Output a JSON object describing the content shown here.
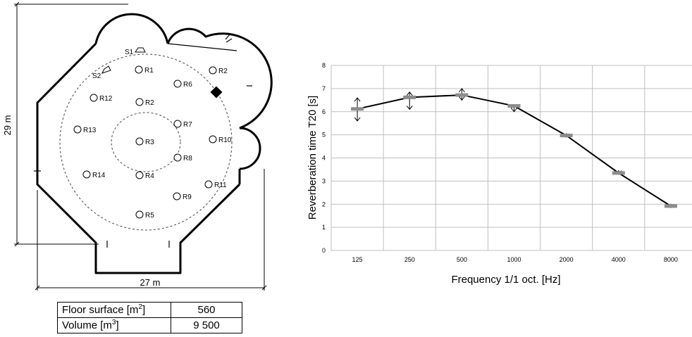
{
  "plan": {
    "dimensions": {
      "height_label": "29 m",
      "width_label": "27 m"
    },
    "sources": [
      {
        "id": "S1",
        "label": "S1"
      },
      {
        "id": "S2",
        "label": "S2"
      }
    ],
    "receivers": [
      {
        "id": "R1",
        "label": "R1"
      },
      {
        "id": "R2",
        "label": "R2"
      },
      {
        "id": "R2b",
        "label": "R2"
      },
      {
        "id": "R3",
        "label": "R3"
      },
      {
        "id": "R4",
        "label": "R4"
      },
      {
        "id": "R5",
        "label": "R5"
      },
      {
        "id": "R6",
        "label": "R6"
      },
      {
        "id": "R7",
        "label": "R7"
      },
      {
        "id": "R8",
        "label": "R8"
      },
      {
        "id": "R9",
        "label": "R9"
      },
      {
        "id": "R10",
        "label": "R10"
      },
      {
        "id": "R11",
        "label": "R11"
      },
      {
        "id": "R12",
        "label": "R12"
      },
      {
        "id": "R13",
        "label": "R13"
      },
      {
        "id": "R14",
        "label": "R14"
      }
    ]
  },
  "table": {
    "rows": [
      {
        "label": "Floor surface [m",
        "sup": "2",
        "close": "]",
        "value": "560"
      },
      {
        "label": "Volume [m",
        "sup": "3",
        "close": "]",
        "value": "9 500"
      }
    ]
  },
  "chart_data": {
    "type": "line",
    "ylabel": "Reverberation time T20 [s]",
    "xlabel": "Frequency 1/1 oct. [Hz]",
    "categories": [
      "125",
      "250",
      "500",
      "1000",
      "2000",
      "4000",
      "8000"
    ],
    "ylim": [
      0,
      8
    ],
    "yticks": [
      "0",
      "1",
      "2",
      "3",
      "4",
      "5",
      "6",
      "7",
      "8"
    ],
    "grid": true,
    "series": [
      {
        "values": [
          6.12,
          6.62,
          6.72,
          6.25,
          4.97,
          3.35,
          1.92
        ]
      }
    ],
    "range_markers": [
      {
        "low": 5.6,
        "high": 6.6
      },
      {
        "low": 6.1,
        "high": 6.85
      },
      {
        "low": 6.5,
        "high": 7.0
      },
      {
        "low": 6.0,
        "high": 6.3
      },
      {
        "low": 4.9,
        "high": 5.05
      },
      {
        "low": 3.3,
        "high": 3.45
      },
      {
        "low": 1.85,
        "high": 2.0
      }
    ],
    "line_color": "#000000",
    "marker_color": "#8c8c8c",
    "grid_color": "#bfbfbf"
  }
}
